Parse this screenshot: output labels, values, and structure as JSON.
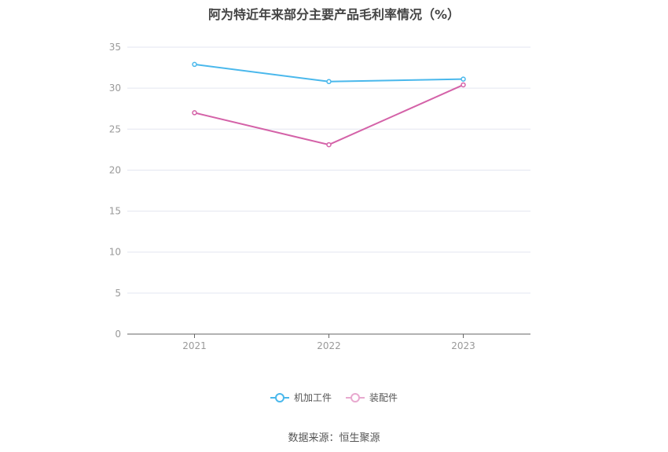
{
  "chart_data": {
    "type": "line",
    "title": "阿为特近年来部分主要产品毛利率情况（%）",
    "categories": [
      "2021",
      "2022",
      "2023"
    ],
    "ylim": [
      0,
      35
    ],
    "yticks": [
      0,
      5,
      10,
      15,
      20,
      25,
      30,
      35
    ],
    "grid": true,
    "legend_position": "bottom",
    "series": [
      {
        "name": "机加工件",
        "color": "#4ab8ec",
        "values": [
          32.9,
          30.8,
          31.1
        ]
      },
      {
        "name": "装配件",
        "color": "#d462a8",
        "values": [
          27.0,
          23.1,
          30.4
        ]
      }
    ]
  },
  "legend": {
    "item_1": "机加工件",
    "item_2": "装配件"
  },
  "source": "数据来源：恒生聚源"
}
